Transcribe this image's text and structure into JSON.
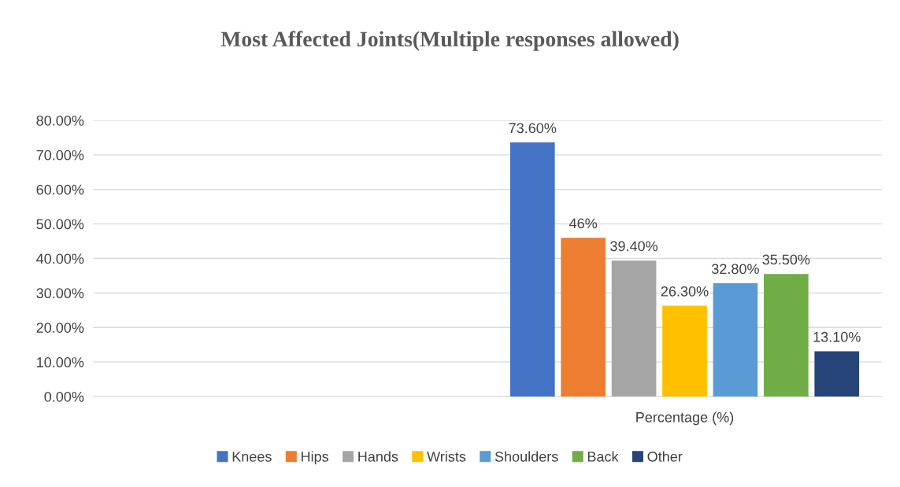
{
  "chart_data": {
    "type": "bar",
    "title": "Most Affected Joints(Multiple responses allowed)",
    "categories": [
      null,
      "Percentage (%)"
    ],
    "series": [
      {
        "name": "Knees",
        "color": "#4472c4",
        "values": [
          null,
          73.6
        ],
        "value_labels": [
          null,
          "73.60%"
        ]
      },
      {
        "name": "Hips",
        "color": "#ed7d31",
        "values": [
          null,
          46
        ],
        "value_labels": [
          null,
          "46%"
        ]
      },
      {
        "name": "Hands",
        "color": "#a5a5a5",
        "values": [
          null,
          39.4
        ],
        "value_labels": [
          null,
          "39.40%"
        ]
      },
      {
        "name": "Wrists",
        "color": "#ffc000",
        "values": [
          null,
          26.3
        ],
        "value_labels": [
          null,
          "26.30%"
        ]
      },
      {
        "name": "Shoulders",
        "color": "#5b9bd5",
        "values": [
          null,
          32.8
        ],
        "value_labels": [
          null,
          "32.80%"
        ]
      },
      {
        "name": "Back",
        "color": "#70ad47",
        "values": [
          null,
          35.5
        ],
        "value_labels": [
          null,
          "35.50%"
        ]
      },
      {
        "name": "Other",
        "color": "#264478",
        "values": [
          null,
          13.1
        ],
        "value_labels": [
          null,
          "13.10%"
        ]
      }
    ],
    "ylim": [
      0,
      80
    ],
    "yticks": [
      {
        "value": 0,
        "label": "0.00%"
      },
      {
        "value": 10,
        "label": "10.00%"
      },
      {
        "value": 20,
        "label": "20.00%"
      },
      {
        "value": 30,
        "label": "30.00%"
      },
      {
        "value": 40,
        "label": "40.00%"
      },
      {
        "value": 50,
        "label": "50.00%"
      },
      {
        "value": 60,
        "label": "60.00%"
      },
      {
        "value": 70,
        "label": "70.00%"
      },
      {
        "value": 80,
        "label": "80.00%"
      }
    ],
    "grid": "y",
    "legend": "bottom"
  }
}
